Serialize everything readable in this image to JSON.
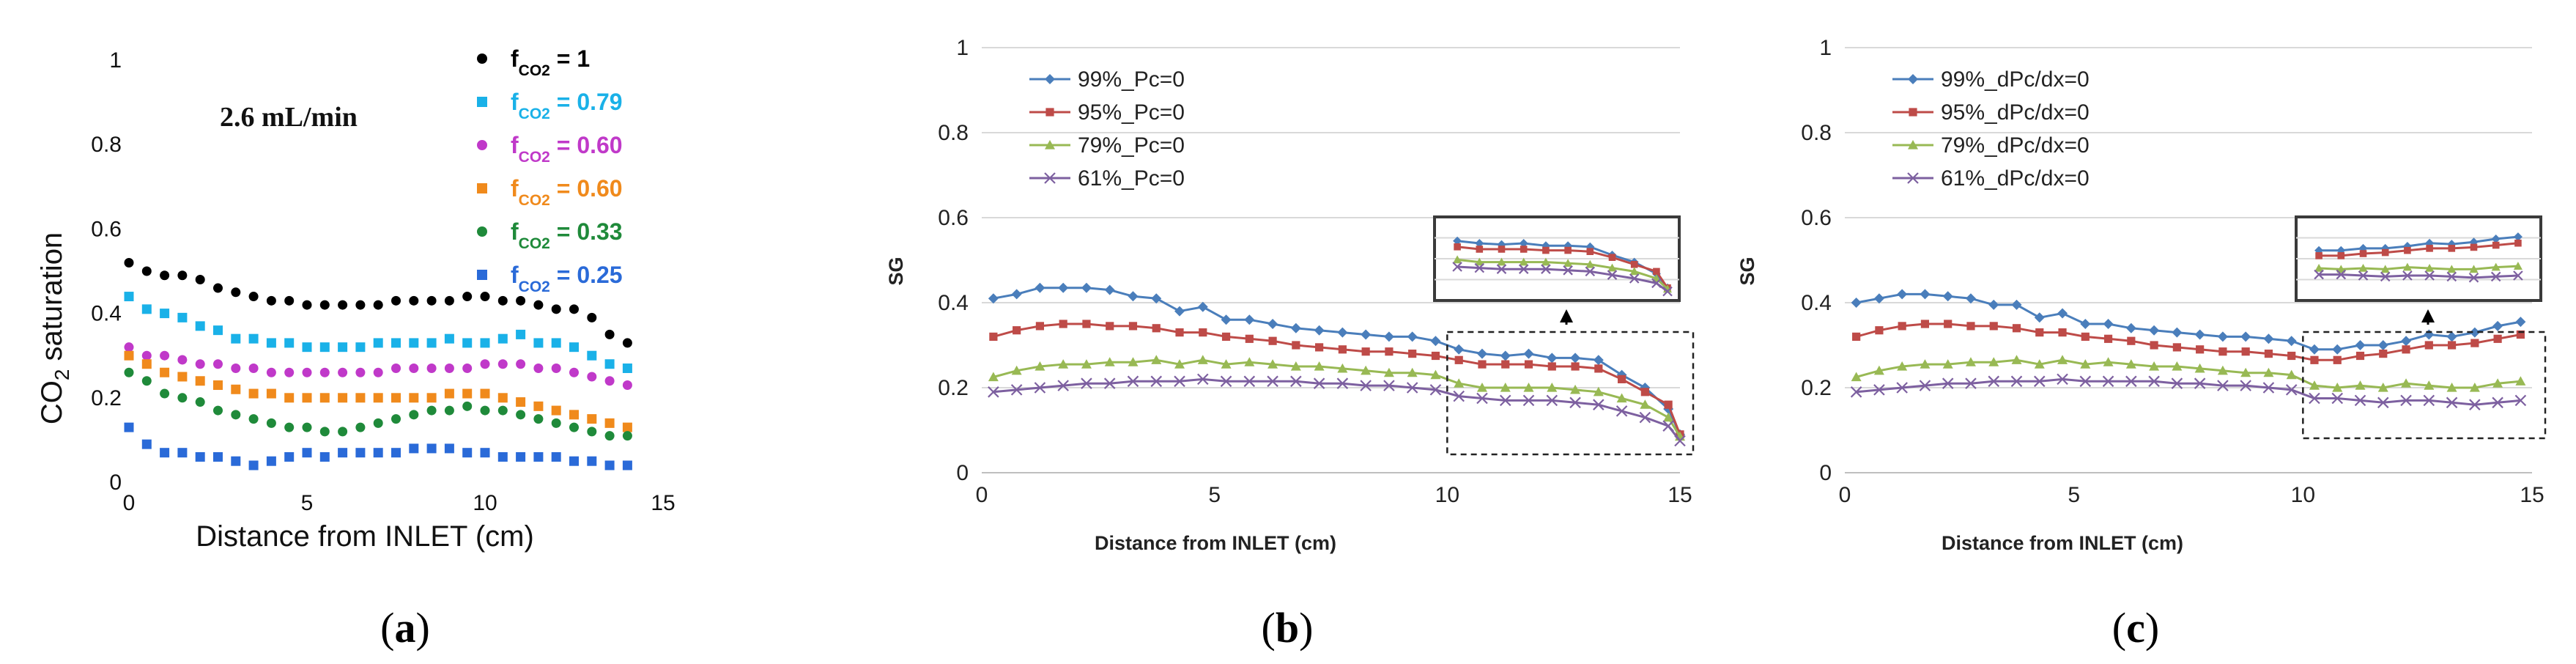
{
  "chart_data": [
    {
      "type": "scatter",
      "panel_label": "(a)",
      "title": "",
      "annotation": "2.6 mL/min",
      "xlabel": "Distance from INLET (cm)",
      "ylabel_main": "CO",
      "ylabel_sub": "2",
      "ylabel_rest": " saturation",
      "xlim": [
        0,
        15
      ],
      "ylim": [
        0,
        1
      ],
      "xticks": [
        "0",
        "5",
        "10",
        "15"
      ],
      "yticks": [
        "0",
        "0.2",
        "0.4",
        "0.6",
        "0.8",
        "1"
      ],
      "legend_position": "top-right",
      "x": [
        0,
        0.5,
        1,
        1.5,
        2,
        2.5,
        3,
        3.5,
        4,
        4.5,
        5,
        5.5,
        6,
        6.5,
        7,
        7.5,
        8,
        8.5,
        9,
        9.5,
        10,
        10.5,
        11,
        11.5,
        12,
        12.5,
        13,
        13.5,
        14
      ],
      "series": [
        {
          "name_prefix": "f",
          "name_sub": "CO2",
          "name_suffix": " = 1",
          "color": "#000000",
          "values": [
            0.52,
            0.5,
            0.49,
            0.49,
            0.48,
            0.46,
            0.45,
            0.44,
            0.43,
            0.43,
            0.42,
            0.42,
            0.42,
            0.42,
            0.42,
            0.43,
            0.43,
            0.43,
            0.43,
            0.44,
            0.44,
            0.43,
            0.43,
            0.42,
            0.41,
            0.41,
            0.39,
            0.35,
            0.33
          ]
        },
        {
          "name_prefix": "f",
          "name_sub": "CO2",
          "name_suffix": " = 0.79",
          "color": "#1ab1e8",
          "values": [
            0.44,
            0.41,
            0.4,
            0.39,
            0.37,
            0.36,
            0.34,
            0.34,
            0.33,
            0.33,
            0.32,
            0.32,
            0.32,
            0.32,
            0.33,
            0.33,
            0.33,
            0.33,
            0.34,
            0.33,
            0.33,
            0.34,
            0.35,
            0.33,
            0.33,
            0.32,
            0.3,
            0.28,
            0.27
          ]
        },
        {
          "name_prefix": "f",
          "name_sub": "CO2",
          "name_suffix": " = 0.60",
          "color": "#c039c9",
          "values": [
            0.32,
            0.3,
            0.3,
            0.29,
            0.28,
            0.28,
            0.27,
            0.27,
            0.26,
            0.26,
            0.26,
            0.26,
            0.26,
            0.26,
            0.26,
            0.27,
            0.27,
            0.27,
            0.27,
            0.27,
            0.28,
            0.28,
            0.28,
            0.27,
            0.27,
            0.26,
            0.25,
            0.24,
            0.23
          ]
        },
        {
          "name_prefix": "f",
          "name_sub": "CO2",
          "name_suffix": " = 0.60",
          "color": "#f08a1c",
          "values": [
            0.3,
            0.28,
            0.26,
            0.25,
            0.24,
            0.23,
            0.22,
            0.21,
            0.21,
            0.2,
            0.2,
            0.2,
            0.2,
            0.2,
            0.2,
            0.2,
            0.2,
            0.2,
            0.21,
            0.21,
            0.21,
            0.2,
            0.19,
            0.18,
            0.17,
            0.16,
            0.15,
            0.14,
            0.13
          ]
        },
        {
          "name_prefix": "f",
          "name_sub": "CO2",
          "name_suffix": " = 0.33",
          "color": "#1f8a3a",
          "values": [
            0.26,
            0.24,
            0.21,
            0.2,
            0.19,
            0.17,
            0.16,
            0.15,
            0.14,
            0.13,
            0.13,
            0.12,
            0.12,
            0.13,
            0.14,
            0.15,
            0.16,
            0.17,
            0.17,
            0.18,
            0.17,
            0.17,
            0.16,
            0.15,
            0.14,
            0.13,
            0.12,
            0.11,
            0.11
          ]
        },
        {
          "name_prefix": "f",
          "name_sub": "CO2",
          "name_suffix": " = 0.25",
          "color": "#2a6ad8",
          "values": [
            0.13,
            0.09,
            0.07,
            0.07,
            0.06,
            0.06,
            0.05,
            0.04,
            0.05,
            0.06,
            0.07,
            0.06,
            0.07,
            0.07,
            0.07,
            0.07,
            0.08,
            0.08,
            0.08,
            0.07,
            0.07,
            0.06,
            0.06,
            0.06,
            0.06,
            0.05,
            0.05,
            0.04,
            0.04
          ]
        }
      ]
    },
    {
      "type": "line",
      "panel_label": "(b)",
      "xlabel": "Distance from INLET (cm)",
      "ylabel": "SG",
      "xlim": [
        0,
        15
      ],
      "ylim": [
        0,
        1
      ],
      "xticks": [
        "0",
        "5",
        "10",
        "15"
      ],
      "yticks": [
        "0",
        "0.2",
        "0.4",
        "0.6",
        "0.8",
        "1"
      ],
      "grid": true,
      "legend_position": "top-left",
      "inset": {
        "x_range": [
          10,
          15
        ],
        "y_range": [
          0.08,
          0.33
        ],
        "description": "zoom of region x 10-15"
      },
      "x": [
        0.25,
        0.75,
        1.25,
        1.75,
        2.25,
        2.75,
        3.25,
        3.75,
        4.25,
        4.75,
        5.25,
        5.75,
        6.25,
        6.75,
        7.25,
        7.75,
        8.25,
        8.75,
        9.25,
        9.75,
        10.25,
        10.75,
        11.25,
        11.75,
        12.25,
        12.75,
        13.25,
        13.75,
        14.25,
        14.75,
        15
      ],
      "series": [
        {
          "name": "99%_Pc=0",
          "color": "#4a7ebb",
          "marker": "diamond",
          "values": [
            0.41,
            0.42,
            0.435,
            0.435,
            0.435,
            0.43,
            0.415,
            0.41,
            0.38,
            0.39,
            0.36,
            0.36,
            0.35,
            0.34,
            0.335,
            0.33,
            0.325,
            0.32,
            0.32,
            0.31,
            0.29,
            0.28,
            0.275,
            0.28,
            0.27,
            0.27,
            0.265,
            0.23,
            0.2,
            0.15,
            0.09
          ]
        },
        {
          "name": "95%_Pc=0",
          "color": "#be4b48",
          "marker": "square",
          "values": [
            0.32,
            0.335,
            0.345,
            0.35,
            0.35,
            0.345,
            0.345,
            0.34,
            0.33,
            0.33,
            0.32,
            0.315,
            0.31,
            0.3,
            0.295,
            0.29,
            0.285,
            0.285,
            0.28,
            0.275,
            0.265,
            0.255,
            0.255,
            0.255,
            0.25,
            0.25,
            0.245,
            0.22,
            0.19,
            0.16,
            0.09
          ]
        },
        {
          "name": "79%_Pc=0",
          "color": "#98b954",
          "marker": "triangle",
          "values": [
            0.225,
            0.24,
            0.25,
            0.255,
            0.255,
            0.26,
            0.26,
            0.265,
            0.255,
            0.265,
            0.255,
            0.26,
            0.255,
            0.25,
            0.25,
            0.245,
            0.24,
            0.235,
            0.235,
            0.23,
            0.21,
            0.2,
            0.2,
            0.2,
            0.2,
            0.195,
            0.19,
            0.175,
            0.16,
            0.13,
            0.085
          ]
        },
        {
          "name": "61%_Pc=0",
          "color": "#7d60a0",
          "marker": "x",
          "values": [
            0.19,
            0.195,
            0.2,
            0.205,
            0.21,
            0.21,
            0.215,
            0.215,
            0.215,
            0.22,
            0.215,
            0.215,
            0.215,
            0.215,
            0.21,
            0.21,
            0.205,
            0.205,
            0.2,
            0.195,
            0.18,
            0.175,
            0.17,
            0.17,
            0.17,
            0.165,
            0.16,
            0.145,
            0.13,
            0.11,
            0.075
          ]
        }
      ]
    },
    {
      "type": "line",
      "panel_label": "(c)",
      "xlabel": "Distance from INLET (cm)",
      "ylabel": "SG",
      "xlim": [
        0,
        15
      ],
      "ylim": [
        0,
        1
      ],
      "xticks": [
        "0",
        "5",
        "10",
        "15"
      ],
      "yticks": [
        "0",
        "0.2",
        "0.4",
        "0.6",
        "0.8",
        "1"
      ],
      "grid": true,
      "legend_position": "top-left",
      "inset": {
        "x_range": [
          10,
          15
        ],
        "y_range": [
          0.1,
          0.38
        ],
        "description": "zoom of region x 10-15"
      },
      "x": [
        0.25,
        0.75,
        1.25,
        1.75,
        2.25,
        2.75,
        3.25,
        3.75,
        4.25,
        4.75,
        5.25,
        5.75,
        6.25,
        6.75,
        7.25,
        7.75,
        8.25,
        8.75,
        9.25,
        9.75,
        10.25,
        10.75,
        11.25,
        11.75,
        12.25,
        12.75,
        13.25,
        13.75,
        14.25,
        14.75
      ],
      "series": [
        {
          "name": "99%_dPc/dx=0",
          "color": "#4a7ebb",
          "marker": "diamond",
          "values": [
            0.4,
            0.41,
            0.42,
            0.42,
            0.415,
            0.41,
            0.395,
            0.395,
            0.365,
            0.375,
            0.35,
            0.35,
            0.34,
            0.335,
            0.33,
            0.325,
            0.32,
            0.32,
            0.315,
            0.31,
            0.29,
            0.29,
            0.3,
            0.3,
            0.31,
            0.325,
            0.32,
            0.33,
            0.345,
            0.355
          ]
        },
        {
          "name": "95%_dPc/dx=0",
          "color": "#be4b48",
          "marker": "square",
          "values": [
            0.32,
            0.335,
            0.345,
            0.35,
            0.35,
            0.345,
            0.345,
            0.34,
            0.33,
            0.33,
            0.32,
            0.315,
            0.31,
            0.3,
            0.295,
            0.29,
            0.285,
            0.285,
            0.28,
            0.275,
            0.265,
            0.265,
            0.275,
            0.28,
            0.29,
            0.3,
            0.3,
            0.305,
            0.315,
            0.325
          ]
        },
        {
          "name": "79%_dPc/dx=0",
          "color": "#98b954",
          "marker": "triangle",
          "values": [
            0.225,
            0.24,
            0.25,
            0.255,
            0.255,
            0.26,
            0.26,
            0.265,
            0.255,
            0.265,
            0.255,
            0.26,
            0.255,
            0.25,
            0.25,
            0.245,
            0.24,
            0.235,
            0.235,
            0.23,
            0.205,
            0.2,
            0.205,
            0.2,
            0.21,
            0.205,
            0.2,
            0.2,
            0.21,
            0.215
          ]
        },
        {
          "name": "61%_dPc/dx=0",
          "color": "#7d60a0",
          "marker": "x",
          "values": [
            0.19,
            0.195,
            0.2,
            0.205,
            0.21,
            0.21,
            0.215,
            0.215,
            0.215,
            0.22,
            0.215,
            0.215,
            0.215,
            0.215,
            0.21,
            0.21,
            0.205,
            0.205,
            0.2,
            0.195,
            0.175,
            0.175,
            0.17,
            0.165,
            0.17,
            0.17,
            0.165,
            0.16,
            0.165,
            0.17
          ]
        }
      ]
    }
  ]
}
